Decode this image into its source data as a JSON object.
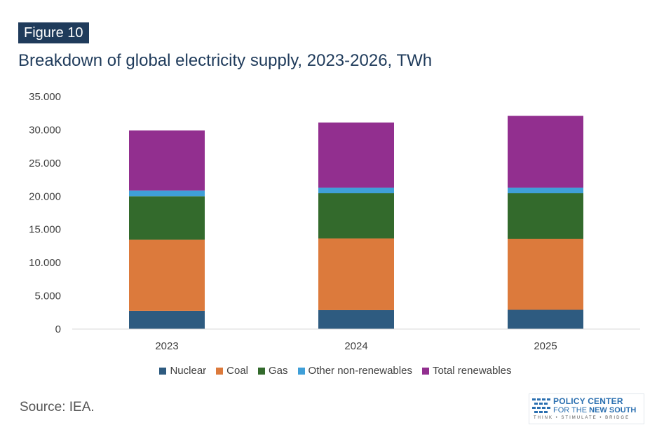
{
  "header": {
    "badge": "Figure 10",
    "title": "Breakdown of global electricity supply, 2023-2026, TWh"
  },
  "source": "Source: IEA.",
  "logo": {
    "line1": "POLICY CENTER",
    "line2_prefix": "FOR THE",
    "line2_bold": "NEW SOUTH",
    "tagline": "THINK • STIMULATE • BRIDGE"
  },
  "chart_data": {
    "type": "bar",
    "stacked": true,
    "categories": [
      "2023",
      "2024",
      "2025"
    ],
    "series": [
      {
        "name": "Nuclear",
        "color": "#2e5b80",
        "values": [
          2750,
          2850,
          2900
        ]
      },
      {
        "name": "Coal",
        "color": "#dc7a3c",
        "values": [
          10700,
          10800,
          10700
        ]
      },
      {
        "name": "Gas",
        "color": "#336a2c",
        "values": [
          6550,
          6800,
          6850
        ]
      },
      {
        "name": "Other non-renewables",
        "color": "#3f9fd8",
        "values": [
          850,
          850,
          850
        ]
      },
      {
        "name": "Total renewables",
        "color": "#922f8f",
        "values": [
          9050,
          9800,
          10800
        ]
      }
    ],
    "yticks": [
      "0",
      "5.000",
      "10.000",
      "15.000",
      "20.000",
      "25.000",
      "30.000",
      "35.000"
    ],
    "ylim": [
      0,
      35000
    ],
    "grid": false,
    "legend": "bottom"
  }
}
